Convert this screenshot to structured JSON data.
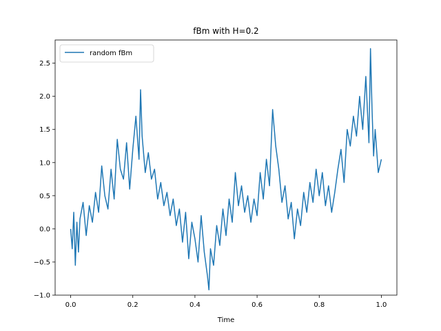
{
  "chart_data": {
    "type": "line",
    "title": "fBm with H=0.2",
    "xlabel": "Time",
    "ylabel": "",
    "xlim": [
      -0.05,
      1.05
    ],
    "ylim": [
      -1.0,
      2.85
    ],
    "x_ticks": [
      0.0,
      0.2,
      0.4,
      0.6,
      0.8,
      1.0
    ],
    "x_tick_labels": [
      "0.0",
      "0.2",
      "0.4",
      "0.6",
      "0.8",
      "1.0"
    ],
    "y_ticks": [
      -1.0,
      -0.5,
      0.0,
      0.5,
      1.0,
      1.5,
      2.0,
      2.5
    ],
    "y_tick_labels": [
      "−1.0",
      "−0.5",
      "0.0",
      "0.5",
      "1.0",
      "1.5",
      "2.0",
      "2.5"
    ],
    "grid": false,
    "legend_position": "top-left",
    "series": [
      {
        "name": "random fBm",
        "color": "#1f77b4",
        "x": [
          0.0,
          0.005,
          0.01,
          0.015,
          0.02,
          0.025,
          0.03,
          0.04,
          0.05,
          0.06,
          0.07,
          0.08,
          0.09,
          0.1,
          0.11,
          0.12,
          0.13,
          0.14,
          0.15,
          0.16,
          0.17,
          0.18,
          0.19,
          0.2,
          0.21,
          0.22,
          0.225,
          0.23,
          0.24,
          0.25,
          0.26,
          0.27,
          0.28,
          0.29,
          0.3,
          0.31,
          0.32,
          0.33,
          0.34,
          0.35,
          0.36,
          0.37,
          0.38,
          0.39,
          0.4,
          0.41,
          0.42,
          0.43,
          0.44,
          0.445,
          0.45,
          0.46,
          0.47,
          0.48,
          0.49,
          0.5,
          0.51,
          0.52,
          0.53,
          0.54,
          0.55,
          0.56,
          0.57,
          0.58,
          0.59,
          0.6,
          0.61,
          0.62,
          0.63,
          0.64,
          0.65,
          0.66,
          0.67,
          0.68,
          0.69,
          0.7,
          0.71,
          0.72,
          0.73,
          0.74,
          0.75,
          0.76,
          0.77,
          0.78,
          0.79,
          0.8,
          0.81,
          0.82,
          0.83,
          0.84,
          0.85,
          0.86,
          0.87,
          0.88,
          0.89,
          0.9,
          0.91,
          0.92,
          0.93,
          0.94,
          0.95,
          0.96,
          0.965,
          0.97,
          0.975,
          0.98,
          0.99,
          1.0
        ],
        "y": [
          0.0,
          -0.3,
          0.25,
          -0.55,
          0.1,
          -0.35,
          0.15,
          0.4,
          -0.1,
          0.35,
          0.1,
          0.55,
          0.25,
          0.95,
          0.5,
          0.3,
          0.9,
          0.45,
          1.35,
          0.9,
          0.75,
          1.3,
          0.6,
          1.2,
          1.7,
          1.05,
          2.1,
          1.4,
          0.85,
          1.15,
          0.75,
          0.9,
          0.45,
          0.7,
          0.35,
          0.55,
          0.2,
          0.45,
          0.05,
          0.3,
          -0.2,
          0.25,
          -0.45,
          0.1,
          -0.15,
          -0.5,
          0.2,
          -0.35,
          -0.7,
          -0.92,
          -0.3,
          -0.55,
          0.05,
          -0.25,
          0.3,
          -0.1,
          0.45,
          0.1,
          0.85,
          0.35,
          0.65,
          0.25,
          0.5,
          0.1,
          0.45,
          0.2,
          0.85,
          0.45,
          1.05,
          0.65,
          1.8,
          1.25,
          0.9,
          0.4,
          0.65,
          0.15,
          0.4,
          -0.15,
          0.3,
          0.05,
          0.55,
          0.25,
          0.7,
          0.4,
          0.9,
          0.5,
          0.85,
          0.35,
          0.65,
          0.25,
          0.55,
          0.9,
          1.2,
          0.7,
          1.5,
          1.25,
          1.7,
          1.4,
          2.0,
          1.5,
          2.3,
          1.3,
          2.72,
          1.8,
          1.1,
          1.5,
          0.85,
          1.05
        ]
      }
    ]
  }
}
